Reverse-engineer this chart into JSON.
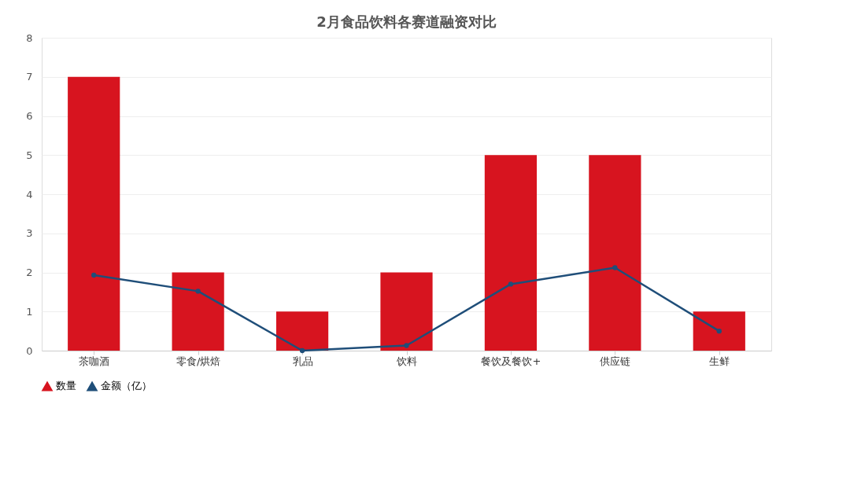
{
  "chart_data": {
    "type": "bar",
    "title": "2月食品饮料各赛道融资对比",
    "categories": [
      "茶咖酒",
      "零食/烘焙",
      "乳品",
      "饮料",
      "餐饮及餐饮+",
      "供应链",
      "生鲜"
    ],
    "series": [
      {
        "name": "数量",
        "color": "#d7141f",
        "values": [
          7,
          2,
          1,
          2,
          5,
          5,
          1
        ]
      },
      {
        "name": "金额（亿）",
        "type": "line",
        "color": "#1f4e79",
        "marker": "circle",
        "values": [
          1.93,
          1.52,
          0.0,
          0.13,
          1.7,
          2.12,
          0.5
        ]
      }
    ],
    "ylim": [
      0,
      8
    ],
    "yticks": [
      0,
      1,
      2,
      3,
      4,
      5,
      6,
      7,
      8
    ],
    "grid": "y",
    "legend": "bottom"
  }
}
